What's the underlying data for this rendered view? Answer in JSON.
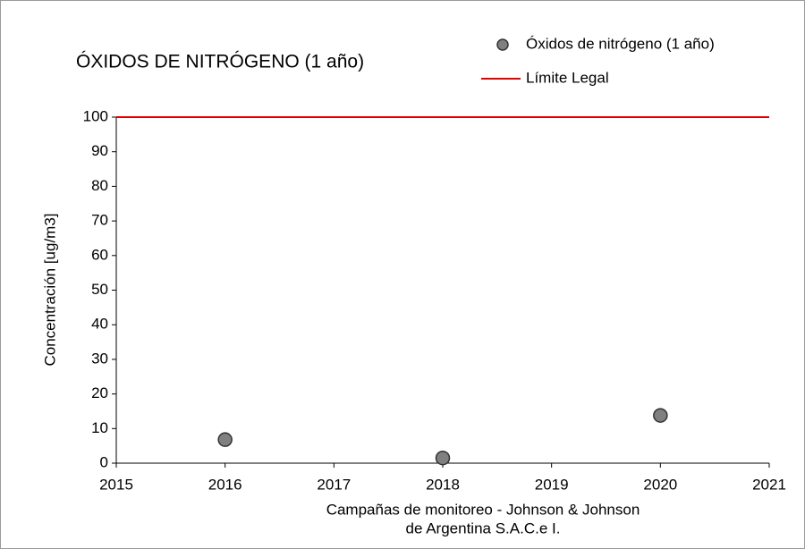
{
  "chart_data": {
    "type": "scatter",
    "title": "ÓXIDOS DE NITRÓGENO (1 año)",
    "ylabel": "Concentración [ug/m3]",
    "xlabel": [
      "Campañas de monitoreo - Johnson & Johnson",
      "de Argentina S.A.C.e I."
    ],
    "series": [
      {
        "name": "Óxidos de nitrógeno (1 año)",
        "type": "scatter",
        "color": "#808080",
        "x": [
          2016,
          2018,
          2020
        ],
        "values": [
          6.8,
          1.5,
          13.8
        ]
      },
      {
        "name": "Límite Legal",
        "type": "line",
        "color": "#e00000",
        "x": [
          2015,
          2021
        ],
        "values": [
          100,
          100
        ]
      }
    ],
    "xlim": [
      2015,
      2021
    ],
    "xticks": [
      2015,
      2016,
      2017,
      2018,
      2019,
      2020,
      2021
    ],
    "ylim": [
      0,
      100
    ],
    "yticks": [
      0,
      10,
      20,
      30,
      40,
      50,
      60,
      70,
      80,
      90,
      100
    ],
    "grid": false,
    "legend": "top-right"
  }
}
